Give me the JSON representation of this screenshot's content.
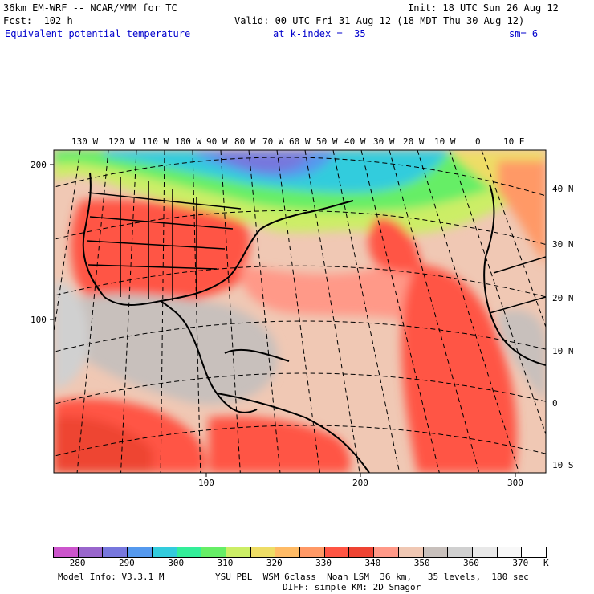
{
  "header": {
    "model_title": "36km EM-WRF -- NCAR/MMM for TC",
    "forecast": "Fcst:  102 h",
    "init": "Init: 18 UTC Sun 26 Aug 12",
    "valid": "Valid: 00 UTC Fri 31 Aug 12 (18 MDT Thu 30 Aug 12)",
    "field": "Equivalent potential temperature",
    "level": "at k-index =  35",
    "smooth": "sm= 6"
  },
  "map": {
    "top_lon_labels": [
      "130 W",
      "120 W",
      "110 W",
      "100 W",
      "90 W",
      "80 W",
      "70 W",
      "60 W",
      "50 W",
      "40 W",
      "30 W",
      "20 W",
      "10 W",
      "0",
      "10 E"
    ],
    "right_lat_labels": [
      "40 N",
      "30 N",
      "20 N",
      "10 N",
      "0",
      "10 S"
    ],
    "left_grid_labels": [
      "200",
      "100"
    ],
    "bottom_grid_labels": [
      "100",
      "200",
      "300"
    ]
  },
  "colorbar": {
    "colors": [
      "#cc55cc",
      "#9966cc",
      "#7777dd",
      "#5599ee",
      "#33ccdd",
      "#33ee99",
      "#66ee66",
      "#ccee66",
      "#eedd66",
      "#ffbb66",
      "#ff9966",
      "#ff5544",
      "#ee4433",
      "#ff9988",
      "#f0c8b4",
      "#c8c0bc",
      "#d0d0d0",
      "#e8e8e8",
      "#f8f8f8",
      "#ffffff"
    ],
    "tick_labels": [
      "280",
      "290",
      "300",
      "310",
      "320",
      "330",
      "340",
      "350",
      "360",
      "370"
    ],
    "unit": "K"
  },
  "footer": {
    "model_info": "Model Info: V3.3.1 M",
    "physics_line1": "YSU PBL  WSM 6class  Noah LSM  36 km,   35 levels,  180 sec",
    "physics_line2": "DIFF: simple KM: 2D Smagor"
  }
}
